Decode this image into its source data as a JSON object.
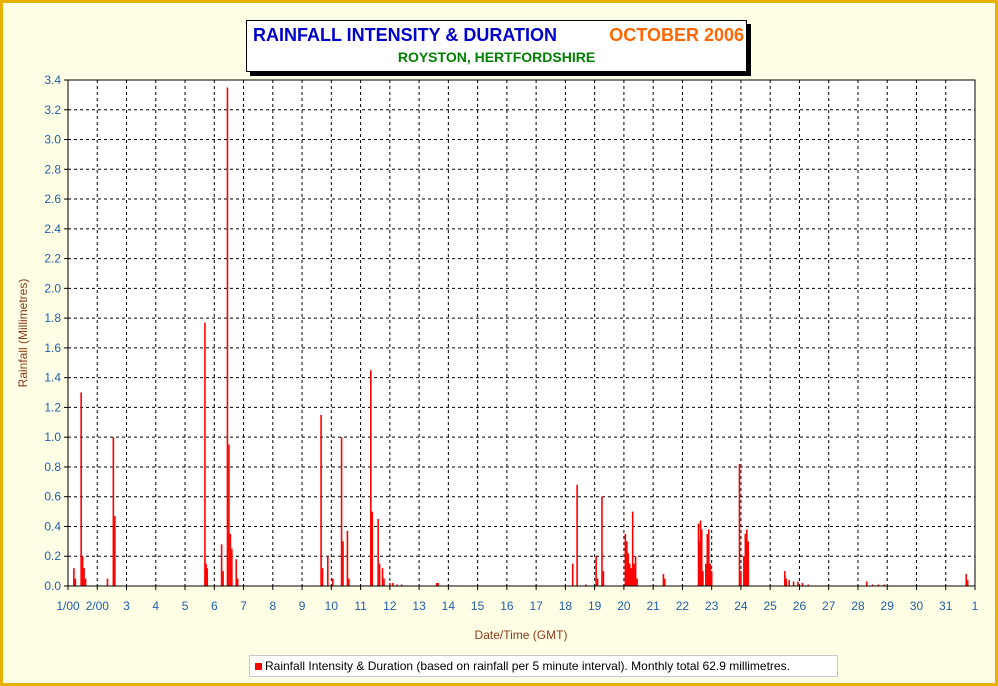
{
  "title": {
    "main": "RAINFALL INTENSITY & DURATION",
    "date": "OCTOBER 2006",
    "subtitle": "ROYSTON, HERTFORDSHIRE"
  },
  "legend": {
    "label": "Rainfall Intensity & Duration (based on rainfall per 5 minute interval). Monthly total 62.9 millimetres."
  },
  "colors": {
    "series": "#FF0000",
    "axis_text": "#1F5FA8",
    "axis_title": "#8B3A1A",
    "title_main": "#0000CC",
    "title_date": "#FF6600",
    "subtitle": "#008000",
    "frame": "#E8B000"
  },
  "chart_data": {
    "type": "bar",
    "xlabel": "Date/Time (GMT)",
    "ylabel": "Rainfall (Millimetres)",
    "ylim": [
      0,
      3.4
    ],
    "xlim": [
      1,
      32
    ],
    "grid": true,
    "legend_position": "bottom",
    "y_ticks": [
      "0.0",
      "0.2",
      "0.4",
      "0.6",
      "0.8",
      "1.0",
      "1.2",
      "1.4",
      "1.6",
      "1.8",
      "2.0",
      "2.2",
      "2.4",
      "2.6",
      "2.8",
      "3.0",
      "3.2",
      "3.4"
    ],
    "x_ticks": [
      {
        "x": 1,
        "label": "1/00"
      },
      {
        "x": 2,
        "label": "2/00"
      },
      {
        "x": 3,
        "label": "3"
      },
      {
        "x": 4,
        "label": "4"
      },
      {
        "x": 5,
        "label": "5"
      },
      {
        "x": 6,
        "label": "6"
      },
      {
        "x": 7,
        "label": "7"
      },
      {
        "x": 8,
        "label": "8"
      },
      {
        "x": 9,
        "label": "9"
      },
      {
        "x": 10,
        "label": "10"
      },
      {
        "x": 11,
        "label": "11"
      },
      {
        "x": 12,
        "label": "12"
      },
      {
        "x": 13,
        "label": "13"
      },
      {
        "x": 14,
        "label": "14"
      },
      {
        "x": 15,
        "label": "15"
      },
      {
        "x": 16,
        "label": "16"
      },
      {
        "x": 17,
        "label": "17"
      },
      {
        "x": 18,
        "label": "18"
      },
      {
        "x": 19,
        "label": "19"
      },
      {
        "x": 20,
        "label": "20"
      },
      {
        "x": 21,
        "label": "21"
      },
      {
        "x": 22,
        "label": "22"
      },
      {
        "x": 23,
        "label": "23"
      },
      {
        "x": 24,
        "label": "24"
      },
      {
        "x": 25,
        "label": "25"
      },
      {
        "x": 26,
        "label": "26"
      },
      {
        "x": 27,
        "label": "27"
      },
      {
        "x": 28,
        "label": "28"
      },
      {
        "x": 29,
        "label": "29"
      },
      {
        "x": 30,
        "label": "30"
      },
      {
        "x": 31,
        "label": "31"
      },
      {
        "x": 32,
        "label": "1"
      }
    ],
    "series": [
      {
        "points": [
          [
            1.2,
            0.12
          ],
          [
            1.25,
            0.05
          ],
          [
            1.45,
            1.3
          ],
          [
            1.5,
            0.2
          ],
          [
            1.55,
            0.12
          ],
          [
            1.6,
            0.05
          ],
          [
            2.35,
            0.05
          ],
          [
            2.55,
            1.0
          ],
          [
            2.6,
            0.47
          ],
          [
            5.68,
            1.77
          ],
          [
            5.72,
            0.15
          ],
          [
            5.76,
            0.12
          ],
          [
            6.25,
            0.28
          ],
          [
            6.3,
            0.1
          ],
          [
            6.45,
            3.35
          ],
          [
            6.5,
            0.95
          ],
          [
            6.55,
            0.35
          ],
          [
            6.6,
            0.25
          ],
          [
            6.75,
            0.18
          ],
          [
            6.8,
            0.05
          ],
          [
            9.65,
            1.15
          ],
          [
            9.7,
            0.12
          ],
          [
            9.88,
            0.2
          ],
          [
            10.05,
            0.05
          ],
          [
            10.35,
            1.0
          ],
          [
            10.4,
            0.3
          ],
          [
            10.55,
            0.37
          ],
          [
            10.6,
            0.05
          ],
          [
            11.35,
            1.45
          ],
          [
            11.4,
            0.5
          ],
          [
            11.6,
            0.45
          ],
          [
            11.65,
            0.15
          ],
          [
            11.75,
            0.12
          ],
          [
            11.8,
            0.05
          ],
          [
            12.0,
            0.02
          ],
          [
            12.1,
            0.02
          ],
          [
            12.25,
            0.01
          ],
          [
            12.4,
            0.01
          ],
          [
            13.6,
            0.02
          ],
          [
            13.65,
            0.02
          ],
          [
            18.25,
            0.15
          ],
          [
            18.4,
            0.68
          ],
          [
            18.7,
            0.01
          ],
          [
            19.05,
            0.2
          ],
          [
            19.1,
            0.05
          ],
          [
            19.25,
            0.6
          ],
          [
            19.3,
            0.1
          ],
          [
            20.05,
            0.35
          ],
          [
            20.1,
            0.3
          ],
          [
            20.15,
            0.22
          ],
          [
            20.2,
            0.15
          ],
          [
            20.25,
            0.12
          ],
          [
            20.3,
            0.5
          ],
          [
            20.35,
            0.15
          ],
          [
            20.4,
            0.2
          ],
          [
            20.45,
            0.05
          ],
          [
            21.35,
            0.08
          ],
          [
            21.4,
            0.05
          ],
          [
            22.55,
            0.42
          ],
          [
            22.58,
            0.3
          ],
          [
            22.62,
            0.44
          ],
          [
            22.66,
            0.38
          ],
          [
            22.7,
            0.1
          ],
          [
            22.8,
            0.15
          ],
          [
            22.85,
            0.35
          ],
          [
            22.9,
            0.38
          ],
          [
            22.95,
            0.15
          ],
          [
            23.0,
            0.1
          ],
          [
            23.95,
            0.82
          ],
          [
            24.0,
            0.1
          ],
          [
            24.1,
            0.2
          ],
          [
            24.15,
            0.35
          ],
          [
            24.2,
            0.38
          ],
          [
            24.25,
            0.3
          ],
          [
            25.5,
            0.1
          ],
          [
            25.55,
            0.05
          ],
          [
            25.65,
            0.04
          ],
          [
            25.8,
            0.03
          ],
          [
            25.95,
            0.03
          ],
          [
            26.1,
            0.02
          ],
          [
            26.3,
            0.01
          ],
          [
            28.3,
            0.03
          ],
          [
            28.5,
            0.01
          ],
          [
            28.7,
            0.01
          ],
          [
            28.9,
            0.01
          ],
          [
            31.7,
            0.08
          ],
          [
            31.75,
            0.04
          ]
        ]
      }
    ]
  }
}
